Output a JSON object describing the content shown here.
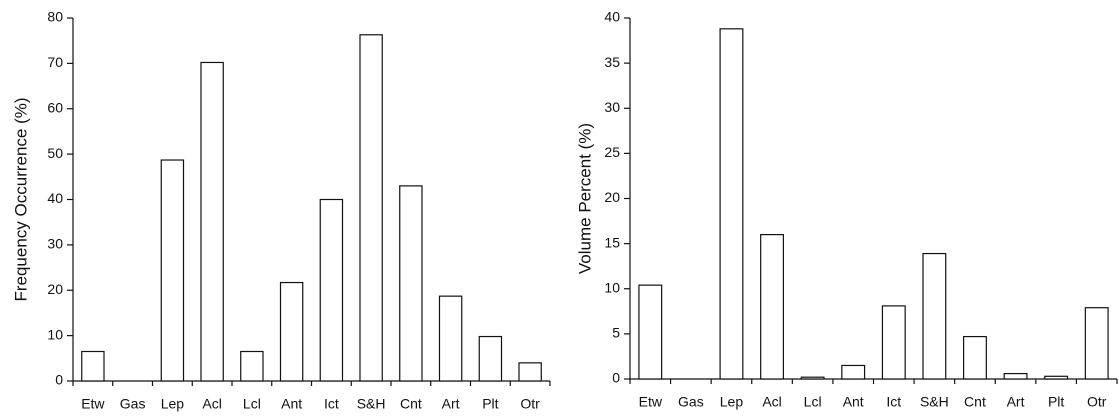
{
  "chart_data": [
    {
      "type": "bar",
      "y_label": "Frequency Occurrence (%)",
      "categories": [
        "Etw",
        "Gas",
        "Lep",
        "Acl",
        "Lcl",
        "Ant",
        "Ict",
        "S&H",
        "Cnt",
        "Art",
        "Plt",
        "Otr"
      ],
      "values": [
        6.5,
        0,
        48.7,
        70.2,
        6.5,
        21.7,
        40,
        76.3,
        43,
        18.7,
        9.8,
        4
      ],
      "color": "#ffffff",
      "ylim": [
        0,
        80
      ],
      "yticks": [
        0,
        10,
        20,
        30,
        40,
        50,
        60,
        70,
        80
      ]
    },
    {
      "type": "bar",
      "y_label": "Volume Percent (%)",
      "categories": [
        "Etw",
        "Gas",
        "Lep",
        "Acl",
        "Lcl",
        "Ant",
        "Ict",
        "S&H",
        "Cnt",
        "Art",
        "Plt",
        "Otr"
      ],
      "values": [
        10.4,
        0,
        38.8,
        16,
        0.2,
        1.5,
        8.1,
        13.9,
        4.7,
        0.6,
        0.3,
        7.9
      ],
      "color": "#ffffff",
      "ylim": [
        0,
        40
      ],
      "yticks": [
        0,
        5,
        10,
        15,
        20,
        25,
        30,
        35,
        40
      ]
    }
  ]
}
